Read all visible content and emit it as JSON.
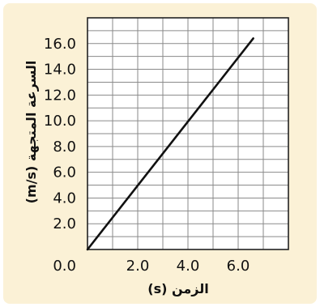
{
  "chart_data": {
    "type": "line",
    "title": "",
    "xlabel": "الزمن (s)",
    "ylabel": "السرعة المتجهة (m/s)",
    "xlim": [
      0,
      8
    ],
    "ylim": [
      0,
      18
    ],
    "x_ticks": [
      {
        "value": 0,
        "label": "0.0"
      },
      {
        "value": 2,
        "label": "2.0"
      },
      {
        "value": 4,
        "label": "4.0"
      },
      {
        "value": 6,
        "label": "6.0"
      }
    ],
    "y_ticks": [
      {
        "value": 2,
        "label": "2.0"
      },
      {
        "value": 4,
        "label": "4.0"
      },
      {
        "value": 6,
        "label": "6.0"
      },
      {
        "value": 8,
        "label": "8.0"
      },
      {
        "value": 10,
        "label": "10.0"
      },
      {
        "value": 12,
        "label": "12.0"
      },
      {
        "value": 14,
        "label": "14.0"
      },
      {
        "value": 16,
        "label": "16.0"
      }
    ],
    "grid": true,
    "legend": "none",
    "series": [
      {
        "x": [
          0,
          6.6
        ],
        "y": [
          0,
          16.4
        ]
      }
    ],
    "colors": {
      "background": "#fbf1d6",
      "plot_background": "#ffffff",
      "grid": "#8a8a8a",
      "line": "#111111"
    }
  }
}
